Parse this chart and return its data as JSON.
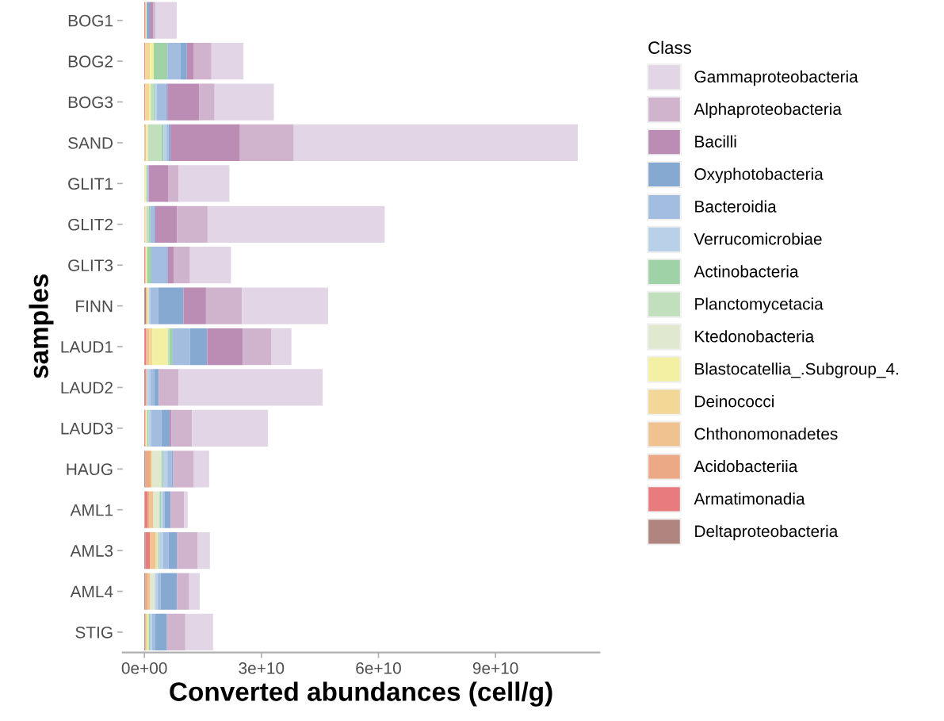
{
  "chart_data": {
    "type": "bar",
    "orientation": "horizontal",
    "stacked": true,
    "xlabel": "Converted abundances (cell/g)",
    "ylabel": "samples",
    "legend_title": "Class",
    "legend": "right",
    "grid": false,
    "categories": [
      "BOG1",
      "BOG2",
      "BOG3",
      "SAND",
      "GLIT1",
      "GLIT2",
      "GLIT3",
      "FINN",
      "LAUD1",
      "LAUD2",
      "LAUD3",
      "HAUG",
      "AML1",
      "AML3",
      "AML4",
      "STIG"
    ],
    "xlim": [
      -5550000000.0,
      116650000000.0
    ],
    "xticks": [
      {
        "value": 0,
        "label": "0e+00"
      },
      {
        "value": 30000000000.0,
        "label": "3e+10"
      },
      {
        "value": 60000000000.0,
        "label": "6e+10"
      },
      {
        "value": 90000000000.0,
        "label": "9e+10"
      }
    ],
    "series": [
      {
        "name": "Deltaproteobacteria",
        "color": "#b0857f",
        "values": [
          0,
          0,
          0,
          100000000.0,
          0,
          0,
          0,
          400000000.0,
          0,
          200000000.0,
          0,
          300000000.0,
          100000000.0,
          300000000.0,
          300000000.0,
          300000000.0
        ]
      },
      {
        "name": "Armatimonadia",
        "color": "#e87b7e",
        "values": [
          300000000.0,
          200000000.0,
          200000000.0,
          0,
          0,
          0,
          300000000.0,
          0,
          500000000.0,
          300000000.0,
          300000000.0,
          0,
          700000000.0,
          1100000000.0,
          0,
          null
        ]
      },
      {
        "name": "Acidobacteriia",
        "color": "#eca986",
        "values": [
          0,
          0,
          0,
          0,
          0,
          100000000.0,
          0,
          0,
          0,
          0,
          0,
          1300000000.0,
          400000000.0,
          0,
          500000000.0,
          0
        ]
      },
      {
        "name": "Chthonomonadetes",
        "color": "#f0c290",
        "values": [
          0,
          0,
          0,
          300000000.0,
          100000000.0,
          200000000.0,
          0,
          400000000.0,
          800000000.0,
          200000000.0,
          0,
          0,
          1100000000.0,
          1500000000.0,
          700000000.0,
          0
        ]
      },
      {
        "name": "Deinococci",
        "color": "#f2d796",
        "values": [
          0,
          1200000000.0,
          1000000000.0,
          0,
          0,
          0,
          0,
          0,
          800000000.0,
          0,
          0,
          400000000.0,
          0,
          300000000.0,
          0,
          500000000.0
        ]
      },
      {
        "name": "Blastocatellia_.Subgroup_4.",
        "color": "#f3f0a4",
        "values": [
          300000000.0,
          1000000000.0,
          400000000.0,
          500000000.0,
          300000000.0,
          200000000.0,
          400000000.0,
          300000000.0,
          3900000000.0,
          0,
          400000000.0,
          0,
          0,
          0,
          0,
          300000000.0
        ]
      },
      {
        "name": "Ktedonobacteria",
        "color": "#e0e9d0",
        "values": [
          0,
          0,
          0,
          0,
          0,
          0,
          0,
          0,
          0,
          0,
          0,
          2400000000.0,
          1600000000.0,
          400000000.0,
          1200000000.0,
          0
        ]
      },
      {
        "name": "Planctomycetacia",
        "color": "#c2dfbd",
        "values": [
          0,
          0,
          700000000.0,
          3500000000.0,
          400000000.0,
          600000000.0,
          0,
          null,
          400000000.0,
          0,
          0,
          0,
          0,
          0,
          0,
          null
        ]
      },
      {
        "name": "Actinobacteria",
        "color": "#a0d2a8",
        "values": [
          0,
          3500000000.0,
          400000000.0,
          500000000.0,
          0,
          400000000.0,
          1100000000.0,
          0,
          900000000.0,
          0,
          400000000.0,
          400000000.0,
          400000000.0,
          300000000.0,
          0,
          300000000.0
        ]
      },
      {
        "name": "Verrucomicrobiae",
        "color": "#b8d1e8",
        "values": [
          0,
          0,
          500000000.0,
          800000000.0,
          0,
          0,
          0,
          400000000.0,
          null,
          900000000.0,
          700000000.0,
          1100000000.0,
          500000000.0,
          900000000.0,
          700000000.0,
          500000000.0
        ]
      },
      {
        "name": "Bacteroidia",
        "color": "#a3bde0",
        "values": [
          0,
          3400000000.0,
          2400000000.0,
          500000000.0,
          300000000.0,
          1100000000.0,
          3900000000.0,
          2100000000.0,
          4400000000.0,
          900000000.0,
          2600000000.0,
          1100000000.0,
          400000000.0,
          1400000000.0,
          800000000.0,
          900000000.0
        ]
      },
      {
        "name": "Oxyphotobacteria",
        "color": "#86a9d1",
        "values": [
          800000000.0,
          1600000000.0,
          300000000.0,
          500000000.0,
          null,
          200000000.0,
          300000000.0,
          6400000000.0,
          4400000000.0,
          1200000000.0,
          2100000000.0,
          400000000.0,
          1500000000.0,
          2200000000.0,
          4200000000.0,
          3000000000.0
        ]
      },
      {
        "name": "Bacilli",
        "color": "#bc8db4",
        "values": [
          800000000.0,
          1800000000.0,
          8200000000.0,
          17800000000.0,
          5100000000.0,
          5600000000.0,
          1500000000.0,
          5800000000.0,
          9100000000.0,
          0,
          400000000.0,
          0,
          0,
          200000000.0,
          0,
          0
        ]
      },
      {
        "name": "Alphaproteobacteria",
        "color": "#d0b4cd",
        "values": [
          600000000.0,
          4500000000.0,
          3900000000.0,
          13800000000.0,
          2600000000.0,
          7800000000.0,
          4200000000.0,
          9200000000.0,
          7400000000.0,
          5100000000.0,
          5300000000.0,
          5300000000.0,
          3500000000.0,
          5100000000.0,
          3100000000.0,
          4700000000.0
        ]
      },
      {
        "name": "Gammaproteobacteria",
        "color": "#e2d6e6",
        "values": [
          5500000000.0,
          8200000000.0,
          15200000000.0,
          72800000000.0,
          13000000000.0,
          45400000000.0,
          10500000000.0,
          22100000000.0,
          5100000000.0,
          36900000000.0,
          19500000000.0,
          3900000000.0,
          900000000.0,
          3100000000.0,
          2700000000.0,
          7100000000.0
        ]
      }
    ]
  }
}
